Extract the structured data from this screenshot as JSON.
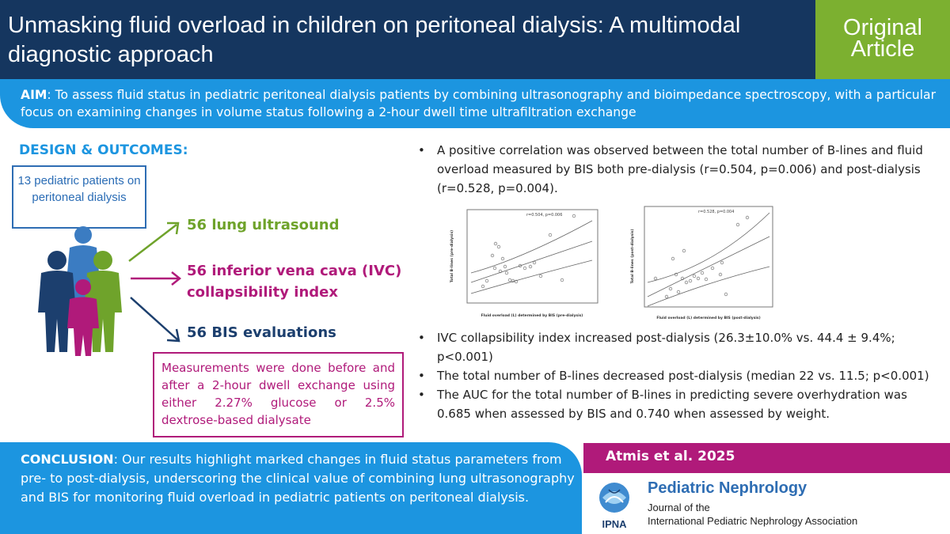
{
  "header": {
    "title": "Unmasking fluid overload in children on peritoneal dialysis: A multimodal diagnostic approach",
    "badge_line1": "Original",
    "badge_line2": "Article"
  },
  "aim": {
    "label": "AIM",
    "text": ": To assess fluid status in pediatric peritoneal dialysis patients by combining ultrasonography and bioimpedance spectroscopy, with a particular focus on examining changes in volume status following a 2-hour dwell time ultrafiltration exchange"
  },
  "design": {
    "title": "DESIGN & OUTCOMES:",
    "patients": "13 pediatric patients on peritoneal dialysis",
    "outcome_lung": "56 lung ultrasound",
    "outcome_ivc": "56 inferior vena cava (IVC) collapsibility index",
    "outcome_bis": "56 BIS evaluations",
    "measurements": "Measurements were done before and after a 2-hour dwell exchange using either 2.27% glucose or 2.5% dextrose-based dialysate"
  },
  "results": {
    "bullet1": "A positive correlation was observed between the total number of B-lines and fluid overload measured by BIS both pre-dialysis (r=0.504, p=0.006) and post-dialysis (r=0.528, p=0.004).",
    "bullet2": "IVC collapsibility index increased post-dialysis (26.3±10.0% vs. 44.4 ± 9.4%; p<0.001)",
    "bullet3": "The total number of B-lines decreased post-dialysis (median 22 vs. 11.5; p<0.001)",
    "bullet4": "The AUC for the total number of B-lines in predicting severe overhydration was 0.685 when assessed by BIS and 0.740 when assessed by weight."
  },
  "plots": {
    "plot1": {
      "annotation": "r=0.504, p=0.006",
      "ylabel": "Total B-lines (pre-dialysis)",
      "xlabel": "Fluid overload (L) determined by BIS (pre-dialysis)"
    },
    "plot2": {
      "annotation": "r=0.528, p=0.004",
      "ylabel": "Total B-lines (post-dialysis)",
      "xlabel": "Fluid overload (L) determined by BIS (post-dialysis)"
    }
  },
  "conclusion": {
    "label": "CONCLUSION",
    "text": ": Our results highlight marked changes in fluid status parameters from pre- to post-dialysis, underscoring the clinical value of combining lung ultrasonography and BIS for monitoring fluid overload in pediatric patients on peritoneal dialysis."
  },
  "citation": "Atmis et al. 2025",
  "journal": {
    "name": "Pediatric Nephrology",
    "of": "Journal of the",
    "association": "International Pediatric Nephrology Association",
    "logo_text": "IPNA"
  },
  "colors": {
    "navy": "#15365f",
    "green": "#7cb030",
    "blue": "#1c95e0",
    "magenta": "#b01a7a"
  }
}
